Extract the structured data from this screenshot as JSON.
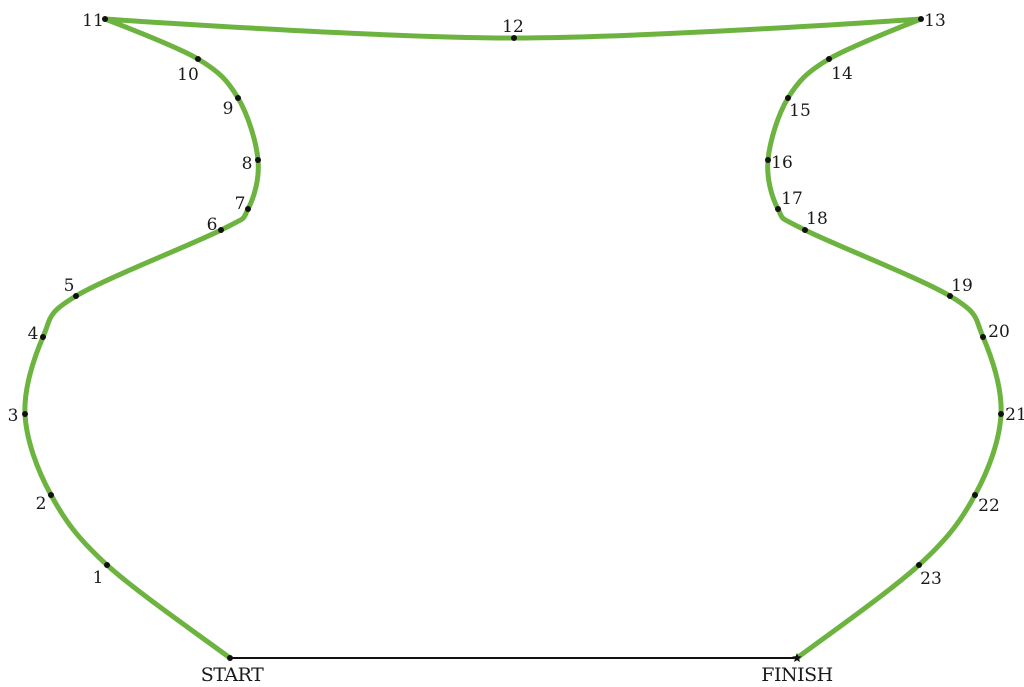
{
  "puzzle": {
    "start_label": "START",
    "finish_label": "FINISH",
    "dots": [
      {
        "n": "1"
      },
      {
        "n": "2"
      },
      {
        "n": "3"
      },
      {
        "n": "4"
      },
      {
        "n": "5"
      },
      {
        "n": "6"
      },
      {
        "n": "7"
      },
      {
        "n": "8"
      },
      {
        "n": "9"
      },
      {
        "n": "10"
      },
      {
        "n": "11"
      },
      {
        "n": "12"
      },
      {
        "n": "13"
      },
      {
        "n": "14"
      },
      {
        "n": "15"
      },
      {
        "n": "16"
      },
      {
        "n": "17"
      },
      {
        "n": "18"
      },
      {
        "n": "19"
      },
      {
        "n": "20"
      },
      {
        "n": "21"
      },
      {
        "n": "22"
      },
      {
        "n": "23"
      }
    ]
  },
  "colors": {
    "outline": "#6db33f",
    "dot": "#111111",
    "text": "#1a1a1a",
    "base_line": "#111111"
  }
}
